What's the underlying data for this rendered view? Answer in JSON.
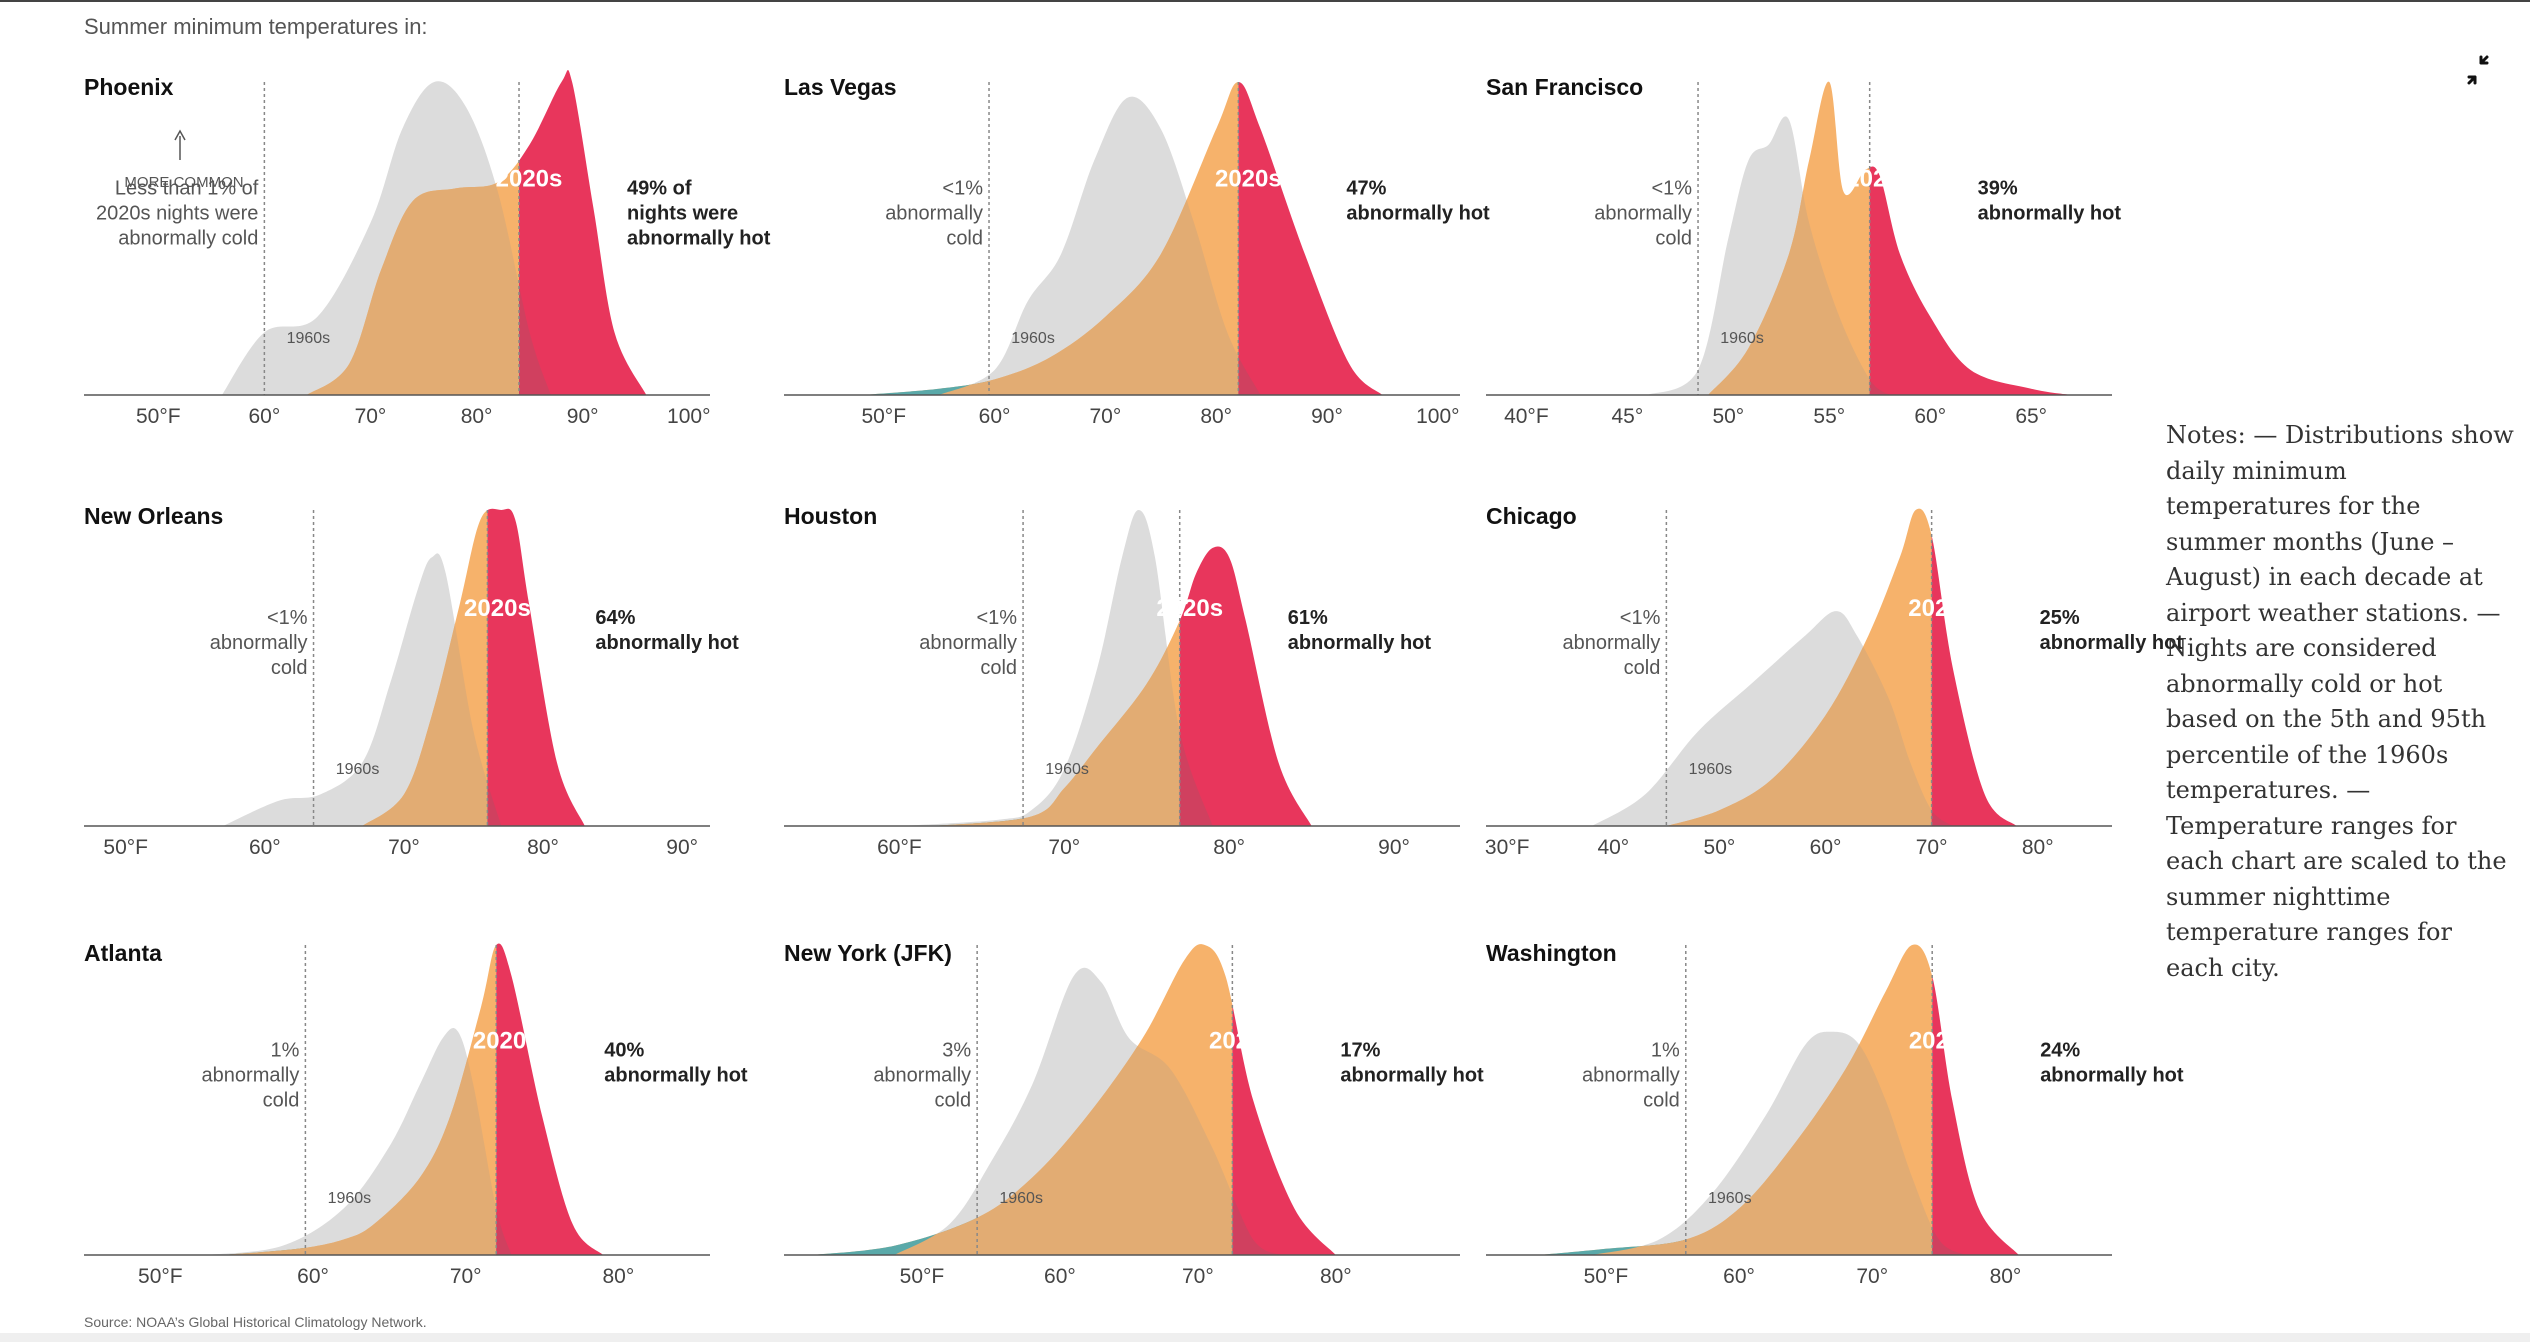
{
  "header": "Summer minimum temperatures in:",
  "source": "Source: NOAA’s Global Historical Climatology Network.",
  "notes": "Notes: — Distributions show daily minimum temperatures for the summer months (June – August) in each decade at airport weather stations. — Nights are considered abnormally cold or hot based on the 5th and 95th percentile of the 1960s temperatures. — Temperature ranges for each chart are scaled to the summer nighttime temperature ranges for each city.",
  "more_common": "MORE COMMON",
  "colors": {
    "gray": "#dcdcdc",
    "orange": "#f6b26b",
    "red": "#e8365c",
    "overlap_orange": "#e2ac73",
    "overlap_red": "#d0405f",
    "teal": "#5aa9a9"
  },
  "icons": {
    "collapse": "collapse-icon",
    "arrow": "arrow-up-icon"
  },
  "chart_data": [
    {
      "type": "area",
      "title": "Phoenix",
      "x_ticks": [
        "50°F",
        "60°",
        "70°",
        "80°",
        "90°",
        "100°"
      ],
      "x_tick_values": [
        50,
        60,
        70,
        80,
        90,
        100
      ],
      "xlim": [
        43,
        102
      ],
      "cold_threshold": 60,
      "hot_threshold": 84,
      "cold_lines": [
        "Less than 1% of",
        "2020s nights were",
        "abnormally cold"
      ],
      "hot_lines": [
        "49% of",
        "nights were",
        "abnormally hot"
      ],
      "label_2020": "2020s",
      "label_1960": "1960s",
      "series": [
        {
          "name": "1960s",
          "x": [
            56,
            60,
            65,
            70,
            73,
            76,
            79,
            82,
            85,
            87
          ],
          "y": [
            0,
            0.2,
            0.25,
            0.55,
            0.85,
            1.0,
            0.92,
            0.65,
            0.2,
            0
          ]
        },
        {
          "name": "2020s",
          "x": [
            64,
            68,
            71,
            74,
            78,
            82,
            85,
            88,
            89,
            91,
            93,
            96
          ],
          "y": [
            0,
            0.1,
            0.4,
            0.62,
            0.66,
            0.68,
            0.8,
            1.0,
            1.0,
            0.6,
            0.2,
            0
          ]
        }
      ]
    },
    {
      "type": "area",
      "title": "Las Vegas",
      "x_ticks": [
        "50°F",
        "60°",
        "70°",
        "80°",
        "90°",
        "100°"
      ],
      "x_tick_values": [
        50,
        60,
        70,
        80,
        90,
        100
      ],
      "xlim": [
        41,
        102
      ],
      "cold_threshold": 59.5,
      "hot_threshold": 82,
      "cold_lines": [
        "<1%",
        "abnormally",
        "cold"
      ],
      "hot_lines": [
        "47%",
        "abnormally hot"
      ],
      "label_2020": "2020s",
      "label_1960": "1960s",
      "series": [
        {
          "name": "1960s",
          "x": [
            55,
            60,
            63,
            66,
            69,
            72,
            75,
            78,
            81,
            84
          ],
          "y": [
            0,
            0.08,
            0.3,
            0.45,
            0.75,
            0.95,
            0.85,
            0.55,
            0.2,
            0
          ]
        },
        {
          "name": "2020s",
          "x": [
            48,
            55,
            60,
            65,
            70,
            75,
            80,
            82,
            84,
            88,
            92,
            95
          ],
          "y": [
            0,
            0.02,
            0.05,
            0.12,
            0.25,
            0.45,
            0.85,
            1.0,
            0.85,
            0.45,
            0.1,
            0
          ]
        }
      ]
    },
    {
      "type": "area",
      "title": "San Francisco",
      "x_ticks": [
        "40°F",
        "45°",
        "50°",
        "55°",
        "60°",
        "65°"
      ],
      "x_tick_values": [
        40,
        45,
        50,
        55,
        60,
        65
      ],
      "xlim": [
        38,
        69
      ],
      "cold_threshold": 48.5,
      "hot_threshold": 57,
      "cold_lines": [
        "<1%",
        "abnormally",
        "cold"
      ],
      "hot_lines": [
        "39%",
        "abnormally hot"
      ],
      "label_2020": "2020s",
      "label_1960": "1960s",
      "series": [
        {
          "name": "1960s",
          "x": [
            46,
            48.5,
            50,
            51,
            52,
            53,
            54,
            55.5,
            57,
            58
          ],
          "y": [
            0,
            0.08,
            0.5,
            0.75,
            0.8,
            0.88,
            0.55,
            0.25,
            0.05,
            0
          ]
        },
        {
          "name": "2020s",
          "x": [
            49,
            51,
            53,
            54,
            55,
            55.7,
            56.8,
            57.5,
            58.5,
            60,
            62,
            65,
            67
          ],
          "y": [
            0,
            0.15,
            0.45,
            0.75,
            1.0,
            0.65,
            0.72,
            0.7,
            0.45,
            0.25,
            0.08,
            0.02,
            0
          ]
        }
      ]
    },
    {
      "type": "area",
      "title": "New Orleans",
      "x_ticks": [
        "50°F",
        "60°",
        "70°",
        "80°",
        "90°"
      ],
      "x_tick_values": [
        50,
        60,
        70,
        80,
        90
      ],
      "xlim": [
        47,
        92
      ],
      "cold_threshold": 63.5,
      "hot_threshold": 76,
      "cold_lines": [
        "<1%",
        "abnormally",
        "cold"
      ],
      "hot_lines": [
        "64%",
        "abnormally hot"
      ],
      "label_2020": "2020s",
      "label_1960": "1960s",
      "series": [
        {
          "name": "1960s",
          "x": [
            57,
            61,
            64,
            67,
            69,
            71,
            72,
            73,
            75,
            77
          ],
          "y": [
            0,
            0.08,
            0.1,
            0.2,
            0.45,
            0.75,
            0.85,
            0.8,
            0.3,
            0
          ]
        },
        {
          "name": "2020s",
          "x": [
            67,
            70,
            72,
            74,
            75.5,
            77,
            78,
            79,
            81,
            83
          ],
          "y": [
            0,
            0.1,
            0.35,
            0.7,
            0.97,
            1.0,
            0.97,
            0.7,
            0.2,
            0
          ]
        }
      ]
    },
    {
      "type": "area",
      "title": "Houston",
      "x_ticks": [
        "60°F",
        "70°",
        "80°",
        "90°"
      ],
      "x_tick_values": [
        60,
        70,
        80,
        90
      ],
      "xlim": [
        53,
        94
      ],
      "cold_threshold": 67.5,
      "hot_threshold": 77,
      "cold_lines": [
        "<1%",
        "abnormally",
        "cold"
      ],
      "hot_lines": [
        "61%",
        "abnormally hot"
      ],
      "label_2020": "2020s",
      "label_1960": "1960s",
      "series": [
        {
          "name": "1960s",
          "x": [
            60,
            66,
            68,
            70,
            72,
            73.5,
            74.5,
            75.5,
            77,
            79
          ],
          "y": [
            0,
            0.02,
            0.05,
            0.18,
            0.5,
            0.85,
            1.0,
            0.85,
            0.3,
            0
          ]
        },
        {
          "name": "2020s",
          "x": [
            62,
            68,
            70,
            72,
            75,
            77,
            78,
            79,
            80,
            81,
            83,
            85
          ],
          "y": [
            0,
            0.03,
            0.12,
            0.25,
            0.45,
            0.65,
            0.8,
            0.88,
            0.85,
            0.65,
            0.2,
            0
          ]
        }
      ]
    },
    {
      "type": "area",
      "title": "Chicago",
      "x_ticks": [
        "30°F",
        "40°",
        "50°",
        "60°",
        "70°",
        "80°"
      ],
      "x_tick_values": [
        30,
        40,
        50,
        60,
        70,
        80
      ],
      "xlim": [
        28,
        87
      ],
      "cold_threshold": 45,
      "hot_threshold": 70,
      "cold_lines": [
        "<1%",
        "abnormally",
        "cold"
      ],
      "hot_lines": [
        "25%",
        "abnormally hot"
      ],
      "label_2020": "2020s",
      "label_1960": "1960s",
      "series": [
        {
          "name": "1960s",
          "x": [
            38,
            43,
            48,
            53,
            58,
            61,
            63,
            66,
            68,
            70,
            72
          ],
          "y": [
            0,
            0.1,
            0.3,
            0.45,
            0.6,
            0.68,
            0.6,
            0.4,
            0.2,
            0.05,
            0
          ]
        },
        {
          "name": "2020s",
          "x": [
            45,
            50,
            55,
            60,
            64,
            67,
            68.5,
            70,
            72,
            75,
            78
          ],
          "y": [
            0,
            0.05,
            0.15,
            0.35,
            0.6,
            0.85,
            1.0,
            0.92,
            0.5,
            0.1,
            0
          ]
        }
      ]
    },
    {
      "type": "area",
      "title": "Atlanta",
      "x_ticks": [
        "50°F",
        "60°",
        "70°",
        "80°"
      ],
      "x_tick_values": [
        50,
        60,
        70,
        80
      ],
      "xlim": [
        45,
        86
      ],
      "cold_threshold": 59.5,
      "hot_threshold": 72,
      "cold_lines": [
        "1%",
        "abnormally",
        "cold"
      ],
      "hot_lines": [
        "40%",
        "abnormally hot"
      ],
      "label_2020": "2020s",
      "label_1960": "1960s",
      "series": [
        {
          "name": "1960s",
          "x": [
            53,
            58,
            62,
            65,
            67,
            68.5,
            69.5,
            70.5,
            72,
            73
          ],
          "y": [
            0,
            0.03,
            0.15,
            0.35,
            0.55,
            0.7,
            0.72,
            0.55,
            0.15,
            0
          ]
        },
        {
          "name": "2020s",
          "x": [
            54,
            59,
            62,
            64,
            67,
            69,
            71,
            72,
            73,
            75,
            77,
            79
          ],
          "y": [
            0,
            0.02,
            0.05,
            0.1,
            0.25,
            0.45,
            0.8,
            1.0,
            0.9,
            0.45,
            0.1,
            0
          ]
        }
      ]
    },
    {
      "type": "area",
      "title": "New York (JFK)",
      "x_ticks": [
        "50°F",
        "60°",
        "70°",
        "80°"
      ],
      "x_tick_values": [
        50,
        60,
        70,
        80
      ],
      "xlim": [
        40,
        89
      ],
      "cold_threshold": 54,
      "hot_threshold": 72.5,
      "cold_lines": [
        "3%",
        "abnormally",
        "cold"
      ],
      "hot_lines": [
        "17%",
        "abnormally hot"
      ],
      "label_2020": "2020s",
      "label_1960": "1960s",
      "series": [
        {
          "name": "1960s",
          "x": [
            48,
            52,
            55,
            58,
            61,
            63,
            65,
            68,
            71,
            74,
            76
          ],
          "y": [
            0,
            0.1,
            0.3,
            0.55,
            0.9,
            0.88,
            0.7,
            0.6,
            0.35,
            0.05,
            0
          ]
        },
        {
          "name": "2020s",
          "x": [
            42,
            48,
            54,
            58,
            62,
            66,
            69,
            70.5,
            72,
            74,
            77,
            80
          ],
          "y": [
            0,
            0.03,
            0.12,
            0.25,
            0.45,
            0.7,
            0.95,
            1.0,
            0.9,
            0.5,
            0.15,
            0
          ]
        }
      ]
    },
    {
      "type": "area",
      "title": "Washington",
      "x_ticks": [
        "50°F",
        "60°",
        "70°",
        "80°"
      ],
      "x_tick_values": [
        50,
        60,
        70,
        80
      ],
      "xlim": [
        41,
        88
      ],
      "cold_threshold": 56,
      "hot_threshold": 74.5,
      "cold_lines": [
        "1%",
        "abnormally",
        "cold"
      ],
      "hot_lines": [
        "24%",
        "abnormally hot"
      ],
      "label_2020": "2020s",
      "label_1960": "1960s",
      "series": [
        {
          "name": "1960s",
          "x": [
            49,
            54,
            58,
            62,
            65,
            67,
            69,
            71,
            73,
            75,
            77
          ],
          "y": [
            0,
            0.05,
            0.2,
            0.45,
            0.68,
            0.72,
            0.68,
            0.5,
            0.25,
            0.05,
            0
          ]
        },
        {
          "name": "2020s",
          "x": [
            45,
            50,
            56,
            60,
            64,
            68,
            71,
            73,
            74.5,
            76,
            78,
            81
          ],
          "y": [
            0,
            0.02,
            0.05,
            0.15,
            0.35,
            0.6,
            0.85,
            1.0,
            0.9,
            0.5,
            0.15,
            0
          ]
        }
      ]
    }
  ]
}
